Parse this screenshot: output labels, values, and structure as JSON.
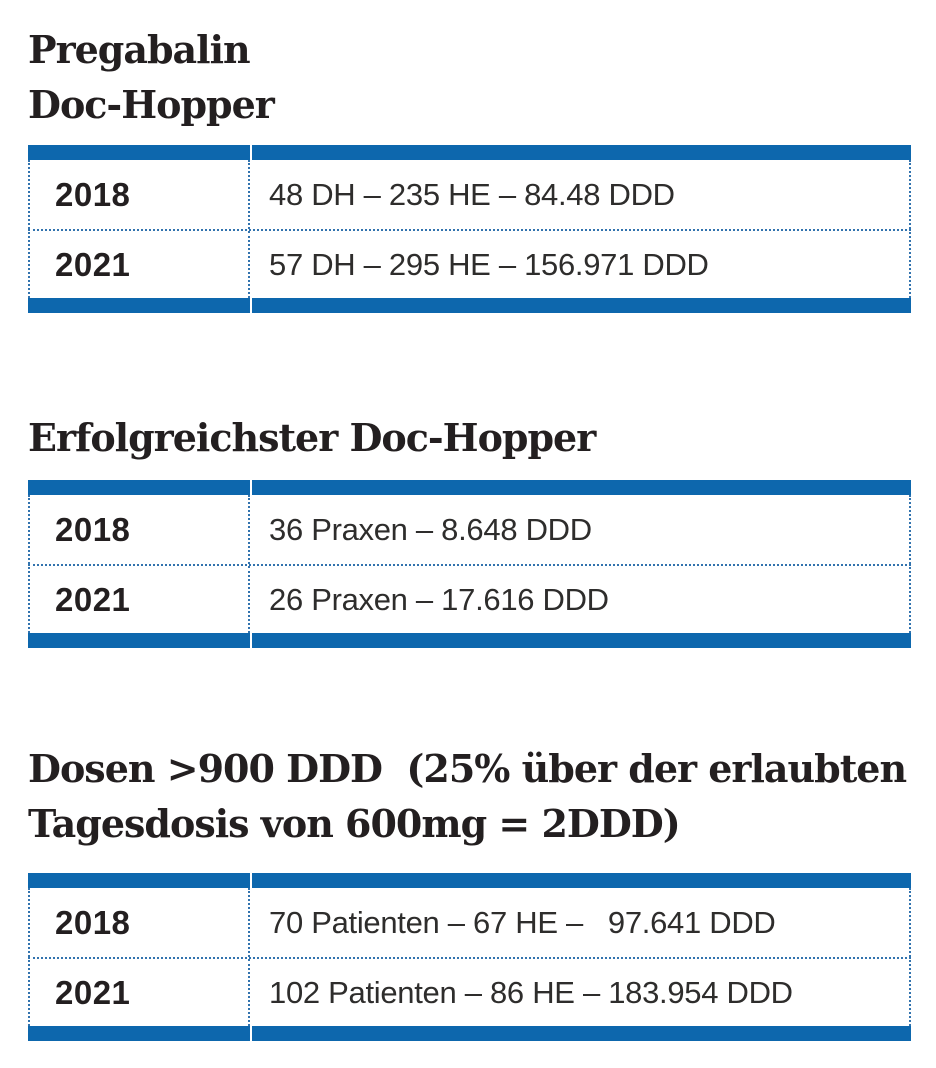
{
  "colors": {
    "bar_blue": "#0d67ad",
    "dotted_border_blue": "#3273ae",
    "title_text": "#231f20",
    "value_text": "#2e2d2c",
    "background": "#ffffff"
  },
  "chart_data": [
    {
      "type": "table",
      "title": "Pregabalin Doc-Hopper",
      "title_lines": [
        "Pregabalin",
        "Doc-Hopper"
      ],
      "rows": [
        {
          "year": "2018",
          "value": "48 DH – 235 HE – 84.48 DDD"
        },
        {
          "year": "2021",
          "value": "57 DH – 295 HE – 156.971 DDD"
        }
      ]
    },
    {
      "type": "table",
      "title": "Erfolgreichster Doc-Hopper",
      "title_lines": [
        "Erfolgreichster Doc-Hopper"
      ],
      "rows": [
        {
          "year": "2018",
          "value": "36 Praxen – 8.648 DDD"
        },
        {
          "year": "2021",
          "value": "26 Praxen – 17.616 DDD"
        }
      ]
    },
    {
      "type": "table",
      "title": "Dosen >900 DDD  (25% über der erlaubten Tagesdosis von 600mg = 2DDD)",
      "title_lines": [
        "Dosen >900 DDD  (25% über der erlaubten",
        "Tagesdosis von 600mg = 2DDD)"
      ],
      "rows": [
        {
          "year": "2018",
          "value": "70 Patienten – 67 HE –   97.641 DDD"
        },
        {
          "year": "2021",
          "value": "102 Patienten – 86 HE – 183.954 DDD"
        }
      ]
    }
  ]
}
